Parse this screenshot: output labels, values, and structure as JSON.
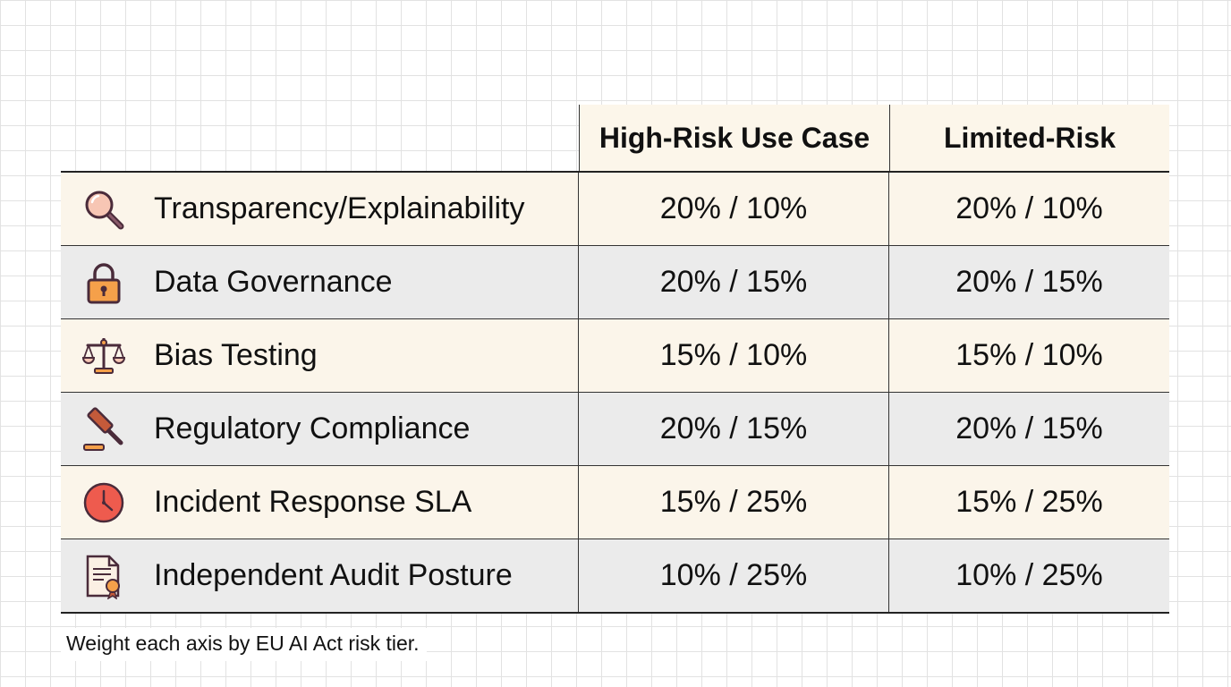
{
  "header": {
    "col1": "High-Risk Use Case",
    "col2": "Limited-Risk"
  },
  "rows": [
    {
      "label": "Transparency/Explainability",
      "icon": "magnifier-icon",
      "high_risk": "20% / 10%",
      "limited_risk": "20% / 10%"
    },
    {
      "label": "Data Governance",
      "icon": "padlock-icon",
      "high_risk": "20% / 15%",
      "limited_risk": "20% / 15%"
    },
    {
      "label": "Bias Testing",
      "icon": "balance-scale-icon",
      "high_risk": "15% / 10%",
      "limited_risk": "15% / 10%"
    },
    {
      "label": "Regulatory Compliance",
      "icon": "gavel-icon",
      "high_risk": "20% / 15%",
      "limited_risk": "20% / 15%"
    },
    {
      "label": "Incident Response SLA",
      "icon": "clock-icon",
      "high_risk": "15% / 25%",
      "limited_risk": "15% / 25%"
    },
    {
      "label": "Independent Audit Posture",
      "icon": "certificate-icon",
      "high_risk": "10% / 25%",
      "limited_risk": "10% / 25%"
    }
  ],
  "footnote": "Weight each axis by EU AI Act risk tier.",
  "colors": {
    "cream_row": "#fbf5ea",
    "gray_row": "#ebebeb",
    "icon_orange": "#f5a04a",
    "icon_red": "#ee5b4e",
    "icon_outline": "#4a2b3a"
  }
}
